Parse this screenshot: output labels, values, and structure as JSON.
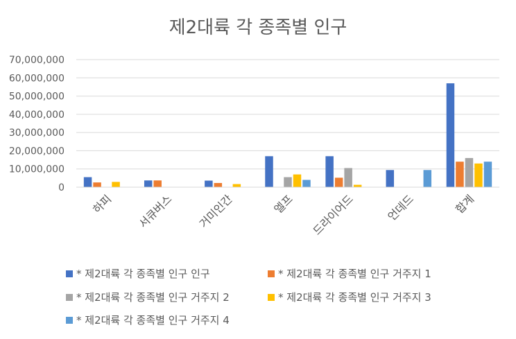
{
  "chart_data": {
    "type": "bar",
    "title": "제2대륙 각 종족별 인구",
    "xlabel": "",
    "ylabel": "",
    "ylim": [
      0,
      70000000
    ],
    "yticks": [
      "70,000,000",
      "60,000,000",
      "50,000,000",
      "40,000,000",
      "30,000,000",
      "20,000,000",
      "10,000,000",
      "0"
    ],
    "ytick_values": [
      70000000,
      60000000,
      50000000,
      40000000,
      30000000,
      20000000,
      10000000,
      0
    ],
    "grid": true,
    "legend_position": "bottom",
    "categories": [
      "하피",
      "서큐버스",
      "거미인간",
      "엘프",
      "드라이어드",
      "언데드",
      "합계"
    ],
    "series": [
      {
        "name": "* 제2대륙 각 종족별 인구  인구",
        "color": "#4472C4",
        "values": [
          5500000,
          3700000,
          3600000,
          17000000,
          17000000,
          9400000,
          57000000
        ]
      },
      {
        "name": "* 제2대륙 각 종족별 인구  거주지 1",
        "color": "#ED7D31",
        "values": [
          2600000,
          3700000,
          2300000,
          0,
          5200000,
          0,
          14000000
        ]
      },
      {
        "name": "* 제2대륙 각 종족별 인구  거주지 2",
        "color": "#A5A5A5",
        "values": [
          0,
          0,
          0,
          5500000,
          10500000,
          0,
          16000000
        ]
      },
      {
        "name": "* 제2대륙 각 종족별 인구  거주지 3",
        "color": "#FFC000",
        "values": [
          2900000,
          0,
          1700000,
          7000000,
          1300000,
          0,
          13000000
        ]
      },
      {
        "name": "* 제2대륙 각 종족별 인구  거주지 4",
        "color": "#5B9BD5",
        "values": [
          0,
          0,
          0,
          4000000,
          0,
          9400000,
          14000000
        ]
      }
    ]
  }
}
